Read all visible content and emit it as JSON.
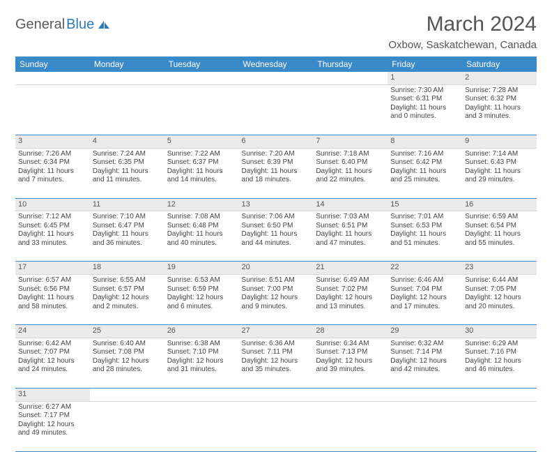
{
  "logo": {
    "text1": "General",
    "text2": "Blue",
    "icon_color": "#2b7bba"
  },
  "title": "March 2024",
  "location": "Oxbow, Saskatchewan, Canada",
  "header_bg": "#3a89c9",
  "daynum_bg": "#ebebeb",
  "weekdays": [
    "Sunday",
    "Monday",
    "Tuesday",
    "Wednesday",
    "Thursday",
    "Friday",
    "Saturday"
  ],
  "weeks": [
    [
      null,
      null,
      null,
      null,
      null,
      {
        "n": "1",
        "sr": "7:30 AM",
        "ss": "6:31 PM",
        "dh": "11",
        "dm": "0"
      },
      {
        "n": "2",
        "sr": "7:28 AM",
        "ss": "6:32 PM",
        "dh": "11",
        "dm": "3"
      }
    ],
    [
      {
        "n": "3",
        "sr": "7:26 AM",
        "ss": "6:34 PM",
        "dh": "11",
        "dm": "7"
      },
      {
        "n": "4",
        "sr": "7:24 AM",
        "ss": "6:35 PM",
        "dh": "11",
        "dm": "11"
      },
      {
        "n": "5",
        "sr": "7:22 AM",
        "ss": "6:37 PM",
        "dh": "11",
        "dm": "14"
      },
      {
        "n": "6",
        "sr": "7:20 AM",
        "ss": "6:39 PM",
        "dh": "11",
        "dm": "18"
      },
      {
        "n": "7",
        "sr": "7:18 AM",
        "ss": "6:40 PM",
        "dh": "11",
        "dm": "22"
      },
      {
        "n": "8",
        "sr": "7:16 AM",
        "ss": "6:42 PM",
        "dh": "11",
        "dm": "25"
      },
      {
        "n": "9",
        "sr": "7:14 AM",
        "ss": "6:43 PM",
        "dh": "11",
        "dm": "29"
      }
    ],
    [
      {
        "n": "10",
        "sr": "7:12 AM",
        "ss": "6:45 PM",
        "dh": "11",
        "dm": "33"
      },
      {
        "n": "11",
        "sr": "7:10 AM",
        "ss": "6:47 PM",
        "dh": "11",
        "dm": "36"
      },
      {
        "n": "12",
        "sr": "7:08 AM",
        "ss": "6:48 PM",
        "dh": "11",
        "dm": "40"
      },
      {
        "n": "13",
        "sr": "7:06 AM",
        "ss": "6:50 PM",
        "dh": "11",
        "dm": "44"
      },
      {
        "n": "14",
        "sr": "7:03 AM",
        "ss": "6:51 PM",
        "dh": "11",
        "dm": "47"
      },
      {
        "n": "15",
        "sr": "7:01 AM",
        "ss": "6:53 PM",
        "dh": "11",
        "dm": "51"
      },
      {
        "n": "16",
        "sr": "6:59 AM",
        "ss": "6:54 PM",
        "dh": "11",
        "dm": "55"
      }
    ],
    [
      {
        "n": "17",
        "sr": "6:57 AM",
        "ss": "6:56 PM",
        "dh": "11",
        "dm": "58"
      },
      {
        "n": "18",
        "sr": "6:55 AM",
        "ss": "6:57 PM",
        "dh": "12",
        "dm": "2"
      },
      {
        "n": "19",
        "sr": "6:53 AM",
        "ss": "6:59 PM",
        "dh": "12",
        "dm": "6"
      },
      {
        "n": "20",
        "sr": "6:51 AM",
        "ss": "7:00 PM",
        "dh": "12",
        "dm": "9"
      },
      {
        "n": "21",
        "sr": "6:49 AM",
        "ss": "7:02 PM",
        "dh": "12",
        "dm": "13"
      },
      {
        "n": "22",
        "sr": "6:46 AM",
        "ss": "7:04 PM",
        "dh": "12",
        "dm": "17"
      },
      {
        "n": "23",
        "sr": "6:44 AM",
        "ss": "7:05 PM",
        "dh": "12",
        "dm": "20"
      }
    ],
    [
      {
        "n": "24",
        "sr": "6:42 AM",
        "ss": "7:07 PM",
        "dh": "12",
        "dm": "24"
      },
      {
        "n": "25",
        "sr": "6:40 AM",
        "ss": "7:08 PM",
        "dh": "12",
        "dm": "28"
      },
      {
        "n": "26",
        "sr": "6:38 AM",
        "ss": "7:10 PM",
        "dh": "12",
        "dm": "31"
      },
      {
        "n": "27",
        "sr": "6:36 AM",
        "ss": "7:11 PM",
        "dh": "12",
        "dm": "35"
      },
      {
        "n": "28",
        "sr": "6:34 AM",
        "ss": "7:13 PM",
        "dh": "12",
        "dm": "39"
      },
      {
        "n": "29",
        "sr": "6:32 AM",
        "ss": "7:14 PM",
        "dh": "12",
        "dm": "42"
      },
      {
        "n": "30",
        "sr": "6:29 AM",
        "ss": "7:16 PM",
        "dh": "12",
        "dm": "46"
      }
    ],
    [
      {
        "n": "31",
        "sr": "6:27 AM",
        "ss": "7:17 PM",
        "dh": "12",
        "dm": "49"
      },
      null,
      null,
      null,
      null,
      null,
      null
    ]
  ],
  "labels": {
    "sunrise": "Sunrise:",
    "sunset": "Sunset:",
    "daylight": "Daylight:",
    "hours": "hours",
    "and": "and",
    "minutes": "minutes."
  }
}
